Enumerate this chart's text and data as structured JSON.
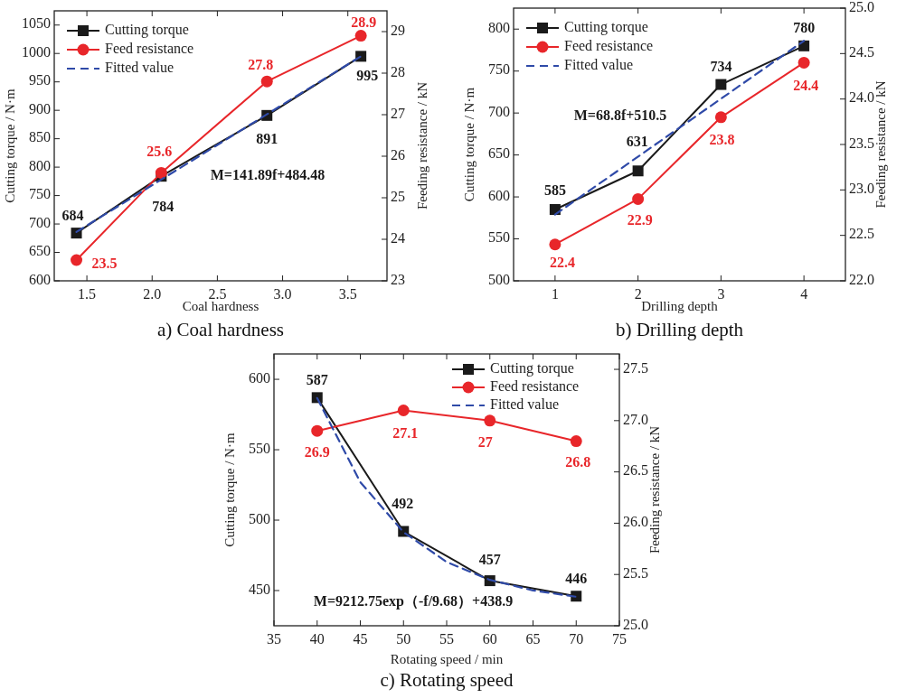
{
  "chart_data": [
    {
      "type": "line",
      "title": "a) Coal hardness",
      "xlabel": "Coal hardness",
      "ylabel": "Cutting torque / N·m",
      "y2label": "Feeding resistance / kN",
      "xlim": [
        1.25,
        3.8
      ],
      "xticks": [
        {
          "value": 1.5,
          "label": "1.5"
        },
        {
          "value": 2,
          "label": "2.0"
        },
        {
          "value": 2.5,
          "label": "2.5"
        },
        {
          "value": 3,
          "label": "3.0"
        },
        {
          "value": 3.5,
          "label": "3.5"
        }
      ],
      "ylim": [
        600,
        1075
      ],
      "yticks": [
        600,
        650,
        700,
        750,
        800,
        850,
        900,
        950,
        1000,
        1050
      ],
      "y2lim": [
        23,
        29.5
      ],
      "y2ticks": [
        23,
        24,
        25,
        26,
        27,
        28,
        29
      ],
      "legend": "top left",
      "grid": false,
      "annotations": [
        "M=141.89f+484.48"
      ],
      "series": [
        {
          "name": "Cutting torque",
          "color": "#1a1a1a",
          "x": [
            1.42,
            2.07,
            2.88,
            3.6
          ],
          "values": [
            684,
            784,
            891,
            995
          ],
          "value_labels": [
            "684",
            "784",
            "891",
            "995"
          ],
          "marker": "square",
          "line_style": "solid"
        },
        {
          "name": "Feed resistance",
          "color": "#e8262a",
          "axis": "y2",
          "x": [
            1.42,
            2.07,
            2.88,
            3.6
          ],
          "values": [
            23.5,
            25.6,
            27.8,
            28.9
          ],
          "value_labels": [
            "23.5",
            "25.6",
            "27.8",
            "28.9"
          ],
          "marker": "circle",
          "line_style": "solid"
        },
        {
          "name": "Fitted value",
          "color": "#2f4aa8",
          "x": [
            1.42,
            3.6
          ],
          "values": [
            686,
            995
          ],
          "marker": "none",
          "line_style": "dashed"
        }
      ]
    },
    {
      "type": "line",
      "title": "b) Drilling depth",
      "xlabel": "Drilling depth",
      "ylabel": "Cutting torque / N·m",
      "y2label": "Feeding resistance / kN",
      "xlim": [
        0.5,
        4.5
      ],
      "xticks": [
        1,
        2,
        3,
        4
      ],
      "ylim": [
        500,
        825
      ],
      "yticks": [
        500,
        550,
        600,
        650,
        700,
        750,
        800
      ],
      "y2lim": [
        22,
        25
      ],
      "y2ticks": [
        {
          "value": 22,
          "label": "22.0"
        },
        {
          "value": 22.5,
          "label": "22.5"
        },
        {
          "value": 23,
          "label": "23.0"
        },
        {
          "value": 23.5,
          "label": "23.5"
        },
        {
          "value": 24,
          "label": "24.0"
        },
        {
          "value": 24.5,
          "label": "24.5"
        },
        {
          "value": 25,
          "label": "25.0"
        }
      ],
      "legend": "top left",
      "grid": false,
      "annotations": [
        "M=68.8f+510.5"
      ],
      "series": [
        {
          "name": "Cutting torque",
          "color": "#1a1a1a",
          "x": [
            1,
            2,
            3,
            4
          ],
          "values": [
            585,
            631,
            734,
            780
          ],
          "value_labels": [
            "585",
            "631",
            "734",
            "780"
          ],
          "marker": "square",
          "line_style": "solid"
        },
        {
          "name": "Feed resistance",
          "color": "#e8262a",
          "axis": "y2",
          "x": [
            1,
            2,
            3,
            4
          ],
          "values": [
            22.4,
            22.9,
            23.8,
            24.4
          ],
          "value_labels": [
            "22.4",
            "22.9",
            "23.8",
            "24.4"
          ],
          "marker": "circle",
          "line_style": "solid"
        },
        {
          "name": "Fitted value",
          "color": "#2f4aa8",
          "x": [
            1,
            4
          ],
          "values": [
            579,
            786
          ],
          "marker": "none",
          "line_style": "dashed"
        }
      ]
    },
    {
      "type": "line",
      "title": "c) Rotating speed",
      "xlabel": "Rotating speed / min",
      "ylabel": "Cutting torque / N·m",
      "y2label": "Feeding resistance / kN",
      "xlim": [
        35,
        75
      ],
      "xticks": [
        35,
        40,
        45,
        50,
        55,
        60,
        65,
        70,
        75
      ],
      "ylim": [
        425,
        618
      ],
      "yticks": [
        450,
        500,
        550,
        600
      ],
      "y2lim": [
        25,
        27.65
      ],
      "y2ticks": [
        {
          "value": 25,
          "label": "25.0"
        },
        {
          "value": 25.5,
          "label": "25.5"
        },
        {
          "value": 26,
          "label": "26.0"
        },
        {
          "value": 26.5,
          "label": "26.5"
        },
        {
          "value": 27,
          "label": "27.0"
        },
        {
          "value": 27.5,
          "label": "27.5"
        }
      ],
      "legend": "top right",
      "grid": false,
      "annotations": [
        "M=9212.75exp（-f/9.68）+438.9"
      ],
      "series": [
        {
          "name": "Cutting torque",
          "color": "#1a1a1a",
          "x": [
            40,
            50,
            60,
            70
          ],
          "values": [
            587,
            492,
            457,
            446
          ],
          "value_labels": [
            "587",
            "492",
            "457",
            "446"
          ],
          "marker": "square",
          "line_style": "solid"
        },
        {
          "name": "Feed resistance",
          "color": "#e8262a",
          "axis": "y2",
          "x": [
            40,
            50,
            60,
            70
          ],
          "values": [
            26.9,
            27.1,
            27,
            26.8
          ],
          "value_labels": [
            "26.9",
            "27.1",
            "27",
            "26.8"
          ],
          "marker": "circle",
          "line_style": "solid"
        },
        {
          "name": "Fitted value",
          "color": "#2f4aa8",
          "x": [
            40,
            45,
            50,
            55,
            60,
            65,
            70
          ],
          "values": [
            586.7,
            527,
            491.5,
            470.3,
            457.6,
            450.1,
            445.6
          ],
          "marker": "none",
          "line_style": "dashed"
        }
      ]
    }
  ]
}
